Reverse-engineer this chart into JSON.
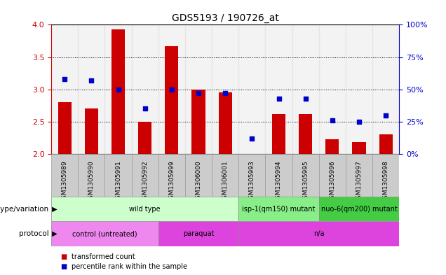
{
  "title": "GDS5193 / 190726_at",
  "samples": [
    "GSM1305989",
    "GSM1305990",
    "GSM1305991",
    "GSM1305992",
    "GSM1305999",
    "GSM1306000",
    "GSM1306001",
    "GSM1305993",
    "GSM1305994",
    "GSM1305995",
    "GSM1305996",
    "GSM1305997",
    "GSM1305998"
  ],
  "transformed_count": [
    2.8,
    2.7,
    3.93,
    2.5,
    3.67,
    3.0,
    2.95,
    2.0,
    2.62,
    2.62,
    2.23,
    2.18,
    2.3
  ],
  "percentile_rank": [
    58,
    57,
    50,
    35,
    50,
    47,
    47,
    12,
    43,
    43,
    26,
    25,
    30
  ],
  "ylim_left": [
    2.0,
    4.0
  ],
  "ylim_right": [
    0,
    100
  ],
  "yticks_left": [
    2.0,
    2.5,
    3.0,
    3.5,
    4.0
  ],
  "yticks_right": [
    0,
    25,
    50,
    75,
    100
  ],
  "ytick_labels_right": [
    "0%",
    "25%",
    "50%",
    "75%",
    "100%"
  ],
  "bar_color": "#cc0000",
  "dot_color": "#0000cc",
  "bar_bottom": 2.0,
  "genotype_groups": [
    {
      "label": "wild type",
      "start": 0,
      "end": 7,
      "color": "#ccffcc",
      "border": "#888888"
    },
    {
      "label": "isp-1(qm150) mutant",
      "start": 7,
      "end": 10,
      "color": "#88ee88",
      "border": "#888888"
    },
    {
      "label": "nuo-6(qm200) mutant",
      "start": 10,
      "end": 13,
      "color": "#44cc44",
      "border": "#888888"
    }
  ],
  "protocol_groups": [
    {
      "label": "control (untreated)",
      "start": 0,
      "end": 4,
      "color": "#ee88ee",
      "border": "#888888"
    },
    {
      "label": "paraquat",
      "start": 4,
      "end": 7,
      "color": "#dd44dd",
      "border": "#888888"
    },
    {
      "label": "n/a",
      "start": 7,
      "end": 13,
      "color": "#dd44dd",
      "border": "#888888"
    }
  ],
  "legend_items": [
    {
      "label": "transformed count",
      "color": "#cc0000"
    },
    {
      "label": "percentile rank within the sample",
      "color": "#0000cc"
    }
  ],
  "genotype_label": "genotype/variation",
  "protocol_label": "protocol",
  "tick_color_left": "#cc0000",
  "tick_color_right": "#0000cc",
  "bar_width": 0.5,
  "col_bg_color": "#dddddd"
}
